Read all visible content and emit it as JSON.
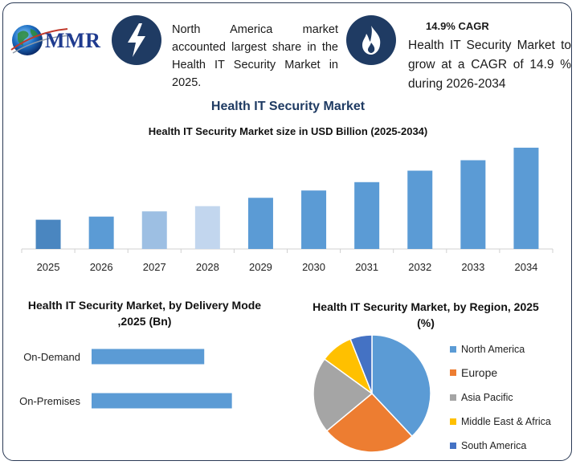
{
  "header": {
    "logo_text": "MMR",
    "note_left": "North America market accounted largest share in the Health IT Security Market in 2025.",
    "cagr_title": "14.9% CAGR",
    "note_right": "Health IT Security Market to grow at a CAGR of 14.9 % during 2026-2034",
    "icons": [
      "lightning-icon",
      "flame-icon",
      "globe-icon"
    ]
  },
  "titles": {
    "main": "Health IT Security Market",
    "sub": "Health IT Security Market size in USD Billion (2025-2034)"
  },
  "chart_data": [
    {
      "type": "bar",
      "title": "Health IT Security Market size in USD Billion (2025-2034)",
      "categories": [
        "2025",
        "2026",
        "2027",
        "2028",
        "2029",
        "2030",
        "2031",
        "2032",
        "2033",
        "2034"
      ],
      "values": [
        28,
        31,
        36,
        41,
        49,
        56,
        64,
        75,
        85,
        97
      ],
      "colors": [
        "#4a86c0",
        "#5b9bd5",
        "#9dbfe3",
        "#c2d6ee",
        "#5b9bd5",
        "#5b9bd5",
        "#5b9bd5",
        "#5b9bd5",
        "#5b9bd5",
        "#5b9bd5"
      ],
      "ylim": [
        0,
        100
      ],
      "grid": false
    },
    {
      "type": "bar",
      "orientation": "horizontal",
      "title": "Health IT Security Market, by Delivery Mode ,2025 (Bn)",
      "categories": [
        "On-Demand",
        "On-Premises"
      ],
      "values": [
        57,
        71
      ],
      "color": "#5b9bd5",
      "xlim": [
        0,
        100
      ]
    },
    {
      "type": "pie",
      "title": "Health IT Security Market, by Region, 2025 (%)",
      "labels": [
        "North America",
        "Europe",
        "Asia Pacific",
        "Middle East & Africa",
        "South America"
      ],
      "values": [
        38,
        26,
        21,
        9,
        6
      ],
      "colors": [
        "#5b9bd5",
        "#ed7d31",
        "#a5a5a5",
        "#ffc000",
        "#4472c4"
      ],
      "legend": "right"
    }
  ]
}
